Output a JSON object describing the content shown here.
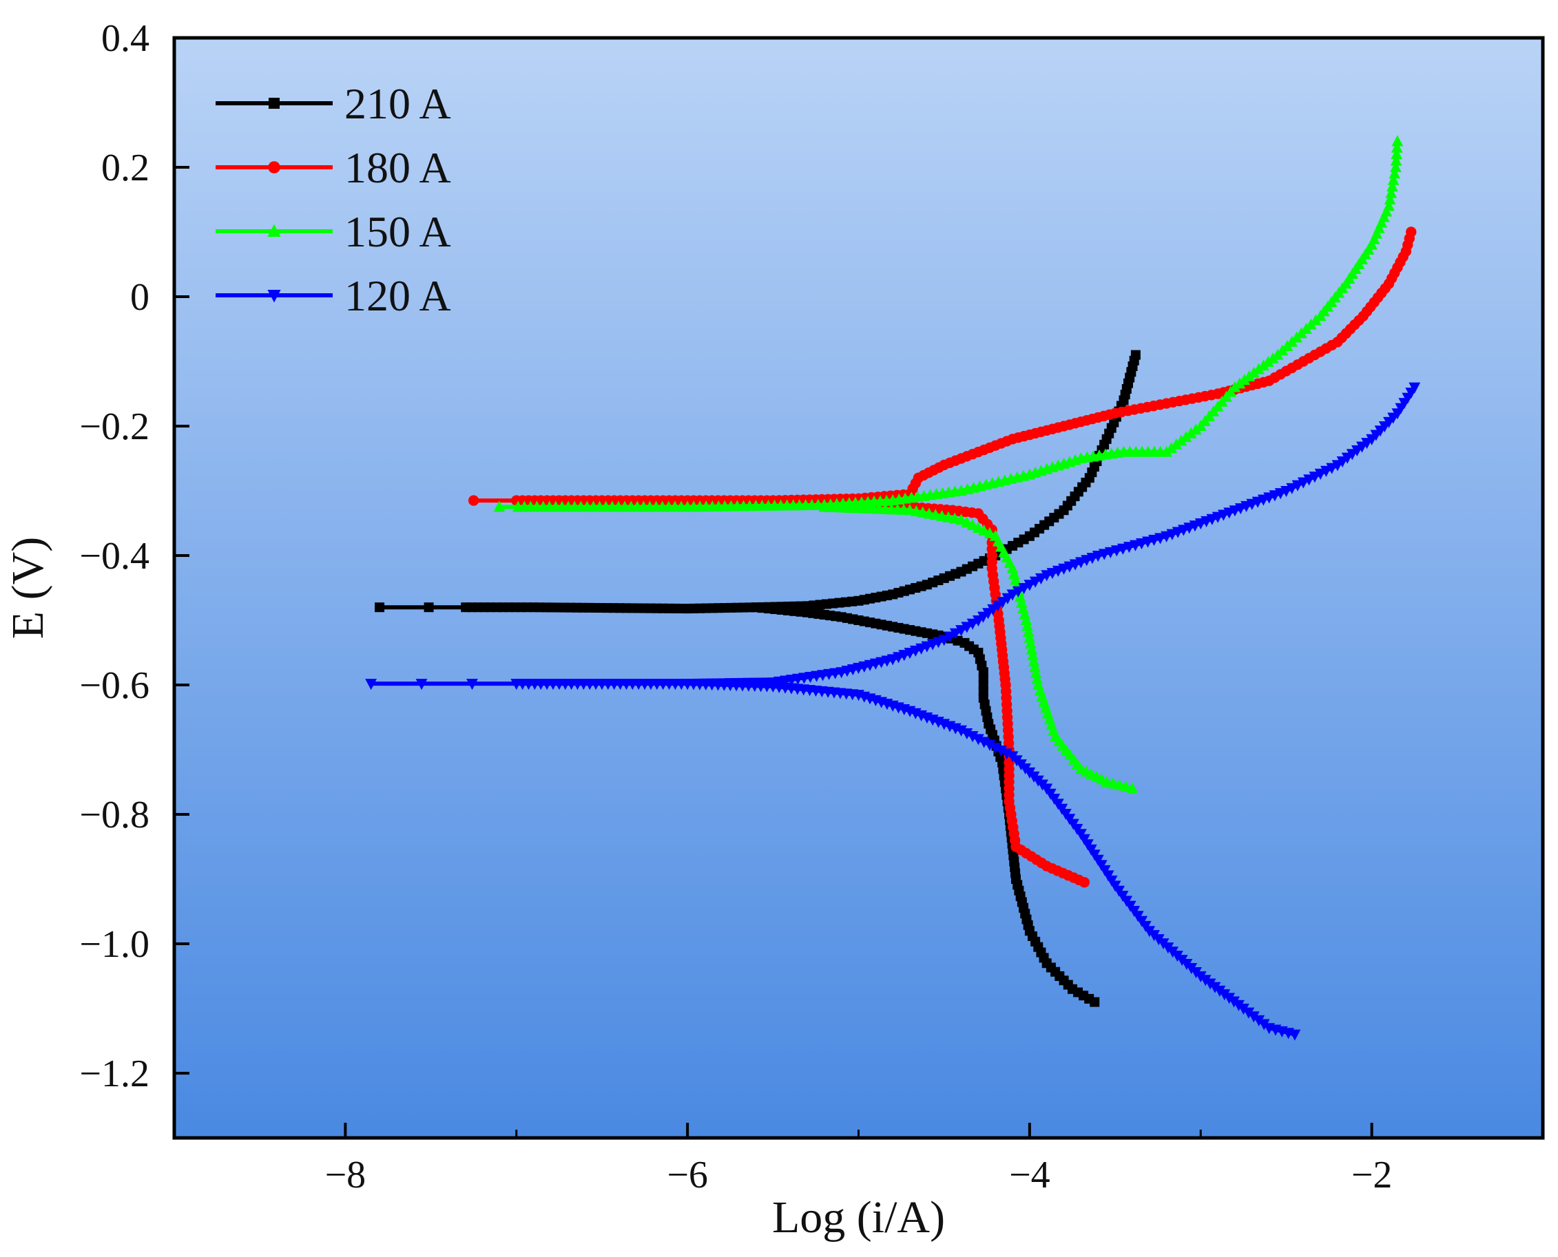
{
  "chart_data": {
    "type": "line",
    "title": "",
    "xlabel": "Log (i/A)",
    "ylabel": "E (V)",
    "xlim": [
      -9,
      -1
    ],
    "ylim": [
      -1.3,
      0.4
    ],
    "xticks": [
      -8,
      -6,
      -4,
      -2
    ],
    "xtick_labels": [
      "−8",
      "−6",
      "−4",
      "−2"
    ],
    "yticks": [
      0.4,
      0.2,
      0,
      -0.2,
      -0.4,
      -0.6,
      -0.8,
      -1.0,
      -1.2
    ],
    "ytick_labels": [
      "0.4",
      "0.2",
      "0",
      "−0.2",
      "−0.4",
      "−0.6",
      "−0.8",
      "−1.0",
      "−1.2"
    ],
    "grid": false,
    "legend_position": "top-left",
    "background": {
      "top_color": "#b9d3f6",
      "bottom_color": "#4a89e2"
    },
    "series": [
      {
        "name": "210 A",
        "color": "#000000",
        "marker": "square",
        "anodic": [
          [
            -7.8,
            -0.48
          ],
          [
            -6.9,
            -0.48
          ],
          [
            -6.0,
            -0.482
          ],
          [
            -5.6,
            -0.48
          ],
          [
            -5.3,
            -0.478
          ],
          [
            -5.0,
            -0.47
          ],
          [
            -4.8,
            -0.46
          ],
          [
            -4.6,
            -0.445
          ],
          [
            -4.4,
            -0.425
          ],
          [
            -4.2,
            -0.4
          ],
          [
            -4.0,
            -0.37
          ],
          [
            -3.8,
            -0.33
          ],
          [
            -3.65,
            -0.28
          ],
          [
            -3.55,
            -0.22
          ],
          [
            -3.45,
            -0.16
          ],
          [
            -3.38,
            -0.09
          ]
        ],
        "cathodic": [
          [
            -5.6,
            -0.48
          ],
          [
            -5.3,
            -0.488
          ],
          [
            -5.1,
            -0.495
          ],
          [
            -4.9,
            -0.505
          ],
          [
            -4.7,
            -0.515
          ],
          [
            -4.5,
            -0.525
          ],
          [
            -4.38,
            -0.535
          ],
          [
            -4.3,
            -0.55
          ],
          [
            -4.27,
            -0.58
          ],
          [
            -4.27,
            -0.62
          ],
          [
            -4.24,
            -0.66
          ],
          [
            -4.16,
            -0.72
          ],
          [
            -4.12,
            -0.8
          ],
          [
            -4.08,
            -0.9
          ],
          [
            -4.0,
            -0.98
          ],
          [
            -3.9,
            -1.03
          ],
          [
            -3.75,
            -1.07
          ],
          [
            -3.62,
            -1.09
          ]
        ]
      },
      {
        "name": "180 A",
        "color": "#ff0000",
        "marker": "circle",
        "anodic": [
          [
            -7.25,
            -0.315
          ],
          [
            -6.5,
            -0.315
          ],
          [
            -5.5,
            -0.315
          ],
          [
            -5.0,
            -0.312
          ],
          [
            -4.7,
            -0.305
          ],
          [
            -4.65,
            -0.28
          ],
          [
            -4.5,
            -0.26
          ],
          [
            -4.3,
            -0.24
          ],
          [
            -4.1,
            -0.22
          ],
          [
            -3.8,
            -0.2
          ],
          [
            -3.5,
            -0.18
          ],
          [
            -3.2,
            -0.165
          ],
          [
            -2.9,
            -0.15
          ],
          [
            -2.6,
            -0.13
          ],
          [
            -2.4,
            -0.1
          ],
          [
            -2.2,
            -0.07
          ],
          [
            -2.05,
            -0.03
          ],
          [
            -1.9,
            0.02
          ],
          [
            -1.8,
            0.07
          ],
          [
            -1.77,
            0.1
          ]
        ],
        "cathodic": [
          [
            -5.5,
            -0.315
          ],
          [
            -5.0,
            -0.32
          ],
          [
            -4.7,
            -0.325
          ],
          [
            -4.45,
            -0.33
          ],
          [
            -4.3,
            -0.335
          ],
          [
            -4.22,
            -0.36
          ],
          [
            -4.22,
            -0.42
          ],
          [
            -4.18,
            -0.5
          ],
          [
            -4.14,
            -0.6
          ],
          [
            -4.12,
            -0.7
          ],
          [
            -4.12,
            -0.78
          ],
          [
            -4.08,
            -0.85
          ],
          [
            -3.9,
            -0.88
          ],
          [
            -3.68,
            -0.905
          ]
        ]
      },
      {
        "name": "150 A",
        "color": "#00ff00",
        "marker": "triangle-up",
        "anodic": [
          [
            -7.1,
            -0.325
          ],
          [
            -6.0,
            -0.325
          ],
          [
            -5.2,
            -0.322
          ],
          [
            -4.8,
            -0.315
          ],
          [
            -4.4,
            -0.3
          ],
          [
            -4.0,
            -0.275
          ],
          [
            -3.7,
            -0.25
          ],
          [
            -3.45,
            -0.24
          ],
          [
            -3.2,
            -0.24
          ],
          [
            -3.0,
            -0.2
          ],
          [
            -2.8,
            -0.14
          ],
          [
            -2.55,
            -0.09
          ],
          [
            -2.3,
            -0.03
          ],
          [
            -2.15,
            0.02
          ],
          [
            -2.0,
            0.08
          ],
          [
            -1.9,
            0.14
          ],
          [
            -1.86,
            0.2
          ],
          [
            -1.85,
            0.24
          ]
        ],
        "cathodic": [
          [
            -5.2,
            -0.325
          ],
          [
            -4.7,
            -0.33
          ],
          [
            -4.4,
            -0.345
          ],
          [
            -4.2,
            -0.37
          ],
          [
            -4.1,
            -0.42
          ],
          [
            -4.02,
            -0.5
          ],
          [
            -3.95,
            -0.6
          ],
          [
            -3.85,
            -0.68
          ],
          [
            -3.7,
            -0.73
          ],
          [
            -3.55,
            -0.75
          ],
          [
            -3.4,
            -0.76
          ]
        ]
      },
      {
        "name": "120 A",
        "color": "#0000ff",
        "marker": "triangle-down",
        "anodic": [
          [
            -7.85,
            -0.598
          ],
          [
            -7.0,
            -0.598
          ],
          [
            -6.0,
            -0.598
          ],
          [
            -5.5,
            -0.596
          ],
          [
            -5.1,
            -0.58
          ],
          [
            -4.8,
            -0.56
          ],
          [
            -4.5,
            -0.53
          ],
          [
            -4.3,
            -0.5
          ],
          [
            -4.1,
            -0.46
          ],
          [
            -3.9,
            -0.43
          ],
          [
            -3.6,
            -0.4
          ],
          [
            -3.2,
            -0.37
          ],
          [
            -2.8,
            -0.33
          ],
          [
            -2.5,
            -0.3
          ],
          [
            -2.2,
            -0.26
          ],
          [
            -2.0,
            -0.22
          ],
          [
            -1.85,
            -0.18
          ],
          [
            -1.75,
            -0.14
          ]
        ],
        "cathodic": [
          [
            -6.0,
            -0.598
          ],
          [
            -5.5,
            -0.602
          ],
          [
            -5.0,
            -0.615
          ],
          [
            -4.7,
            -0.64
          ],
          [
            -4.4,
            -0.67
          ],
          [
            -4.1,
            -0.71
          ],
          [
            -3.9,
            -0.76
          ],
          [
            -3.7,
            -0.83
          ],
          [
            -3.5,
            -0.91
          ],
          [
            -3.3,
            -0.98
          ],
          [
            -3.0,
            -1.05
          ],
          [
            -2.75,
            -1.1
          ],
          [
            -2.6,
            -1.13
          ],
          [
            -2.45,
            -1.14
          ]
        ]
      }
    ]
  }
}
